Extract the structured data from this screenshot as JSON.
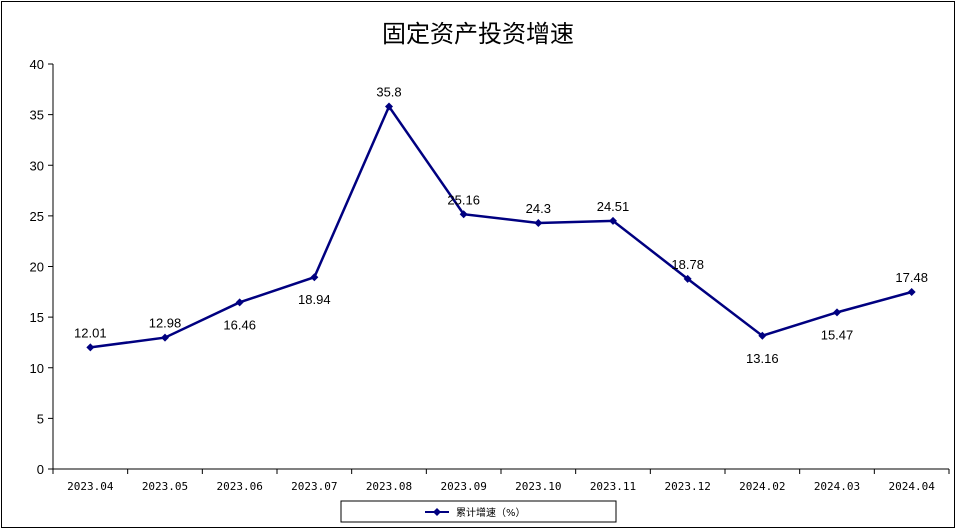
{
  "chart_data": {
    "type": "line",
    "title": "固定资产投资增速",
    "categories": [
      "2023.04",
      "2023.05",
      "2023.06",
      "2023.07",
      "2023.08",
      "2023.09",
      "2023.10",
      "2023.11",
      "2023.12",
      "2024.02",
      "2024.03",
      "2024.04"
    ],
    "series": [
      {
        "name": "累计增速（%）",
        "values": [
          12.01,
          12.98,
          16.46,
          18.94,
          35.8,
          25.16,
          24.3,
          24.51,
          18.78,
          13.16,
          15.47,
          17.48
        ],
        "labels": [
          "12.01",
          "12.98",
          "16.46",
          "18.94",
          "35.8",
          "25.16",
          "24.3",
          "24.51",
          "18.78",
          "13.16",
          "15.47",
          "17.48"
        ],
        "color": "#000080"
      }
    ],
    "ylim": [
      0,
      40
    ],
    "yticks": [
      0,
      5,
      10,
      15,
      20,
      25,
      30,
      35,
      40
    ],
    "grid": false,
    "legend": "bottom"
  }
}
